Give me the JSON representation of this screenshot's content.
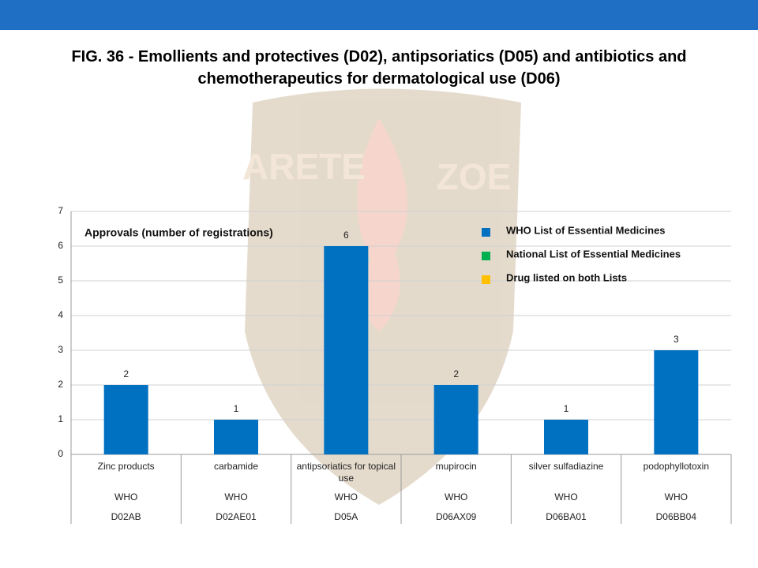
{
  "chart_data": {
    "type": "bar",
    "title": "FIG. 36 - Emollients and protectives (D02), antipsoriatics (D05) and antibiotics and chemotherapeutics for dermatological use (D06)",
    "watermark": [
      "ARETE",
      "ZOE"
    ],
    "annotation": "Approvals (number of registrations)",
    "categories": [
      "Zinc products",
      "carbamide",
      "antipsoriatics for topical use",
      "mupirocin",
      "silver sulfadiazine",
      "podophyllotoxin"
    ],
    "list_row": [
      "WHO",
      "WHO",
      "WHO",
      "WHO",
      "WHO",
      "WHO"
    ],
    "code_row": [
      "D02AB",
      "D02AE01",
      "D05A",
      "D06AX09",
      "D06BA01",
      "D06BB04"
    ],
    "values": [
      2,
      1,
      6,
      2,
      1,
      3
    ],
    "legend": [
      {
        "name": "WHO List of Essential Medicines",
        "color": "#0070c0"
      },
      {
        "name": "National List of Essential Medicines",
        "color": "#00b050"
      },
      {
        "name": "Drug listed on both Lists",
        "color": "#ffc000"
      }
    ],
    "ylim": [
      0,
      7
    ],
    "yticks": [
      0,
      1,
      2,
      3,
      4,
      5,
      6,
      7
    ],
    "grid": true
  }
}
